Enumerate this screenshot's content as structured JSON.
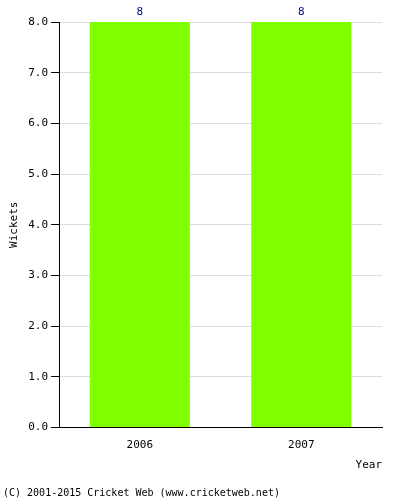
{
  "chart_data": {
    "type": "bar",
    "categories": [
      "2006",
      "2007"
    ],
    "values": [
      8,
      8
    ],
    "color": "#80ff00",
    "x_label": "Year",
    "y_label": "Wickets",
    "ylim": [
      0,
      8
    ],
    "yticks": [
      {
        "value": 0,
        "label": "0.0"
      },
      {
        "value": 1,
        "label": "1.0"
      },
      {
        "value": 2,
        "label": "2.0"
      },
      {
        "value": 3,
        "label": "3.0"
      },
      {
        "value": 4,
        "label": "4.0"
      },
      {
        "value": 5,
        "label": "5.0"
      },
      {
        "value": 6,
        "label": "6.0"
      },
      {
        "value": 7,
        "label": "7.0"
      },
      {
        "value": 8,
        "label": "8.0"
      }
    ],
    "grid": true,
    "data_labels": true,
    "annotations": [
      "(C) 2001-2015 Cricket Web (www.cricketweb.net)"
    ]
  }
}
